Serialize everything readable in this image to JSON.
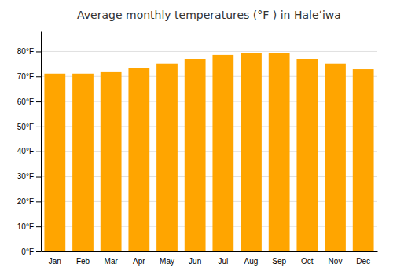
{
  "chart_data": {
    "type": "bar",
    "title": "Average monthly temperatures (°F ) in Haleʼiwa",
    "categories": [
      "Jan",
      "Feb",
      "Mar",
      "Apr",
      "May",
      "Jun",
      "Jul",
      "Aug",
      "Sep",
      "Oct",
      "Nov",
      "Dec"
    ],
    "values": [
      71.1,
      71.1,
      72.0,
      73.5,
      75.2,
      77.0,
      78.6,
      79.5,
      79.3,
      77.0,
      75.2,
      72.9
    ],
    "color": "#FFA500",
    "ylim": [
      0,
      88
    ],
    "yticks": [
      {
        "value": 0,
        "label": "0°F"
      },
      {
        "value": 10,
        "label": "10°F"
      },
      {
        "value": 20,
        "label": "20°F"
      },
      {
        "value": 30,
        "label": "30°F"
      },
      {
        "value": 40,
        "label": "40°F"
      },
      {
        "value": 50,
        "label": "50°F"
      },
      {
        "value": 60,
        "label": "60°F"
      },
      {
        "value": 70,
        "label": "70°F"
      },
      {
        "value": 80,
        "label": "80°F"
      }
    ],
    "grid": true
  }
}
